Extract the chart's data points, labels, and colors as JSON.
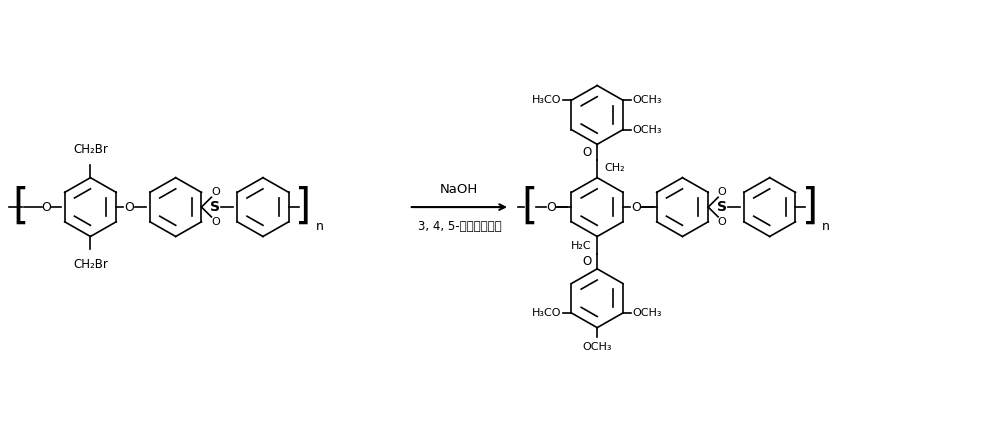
{
  "bg_color": "#ffffff",
  "line_color": "#000000",
  "text_color": "#000000",
  "figsize": [
    10.0,
    4.22
  ],
  "dpi": 100,
  "arrow_label_top": "NaOH",
  "arrow_label_bottom": "3, 4, 5-三甲氧基苯酚",
  "subscript_n": "n"
}
